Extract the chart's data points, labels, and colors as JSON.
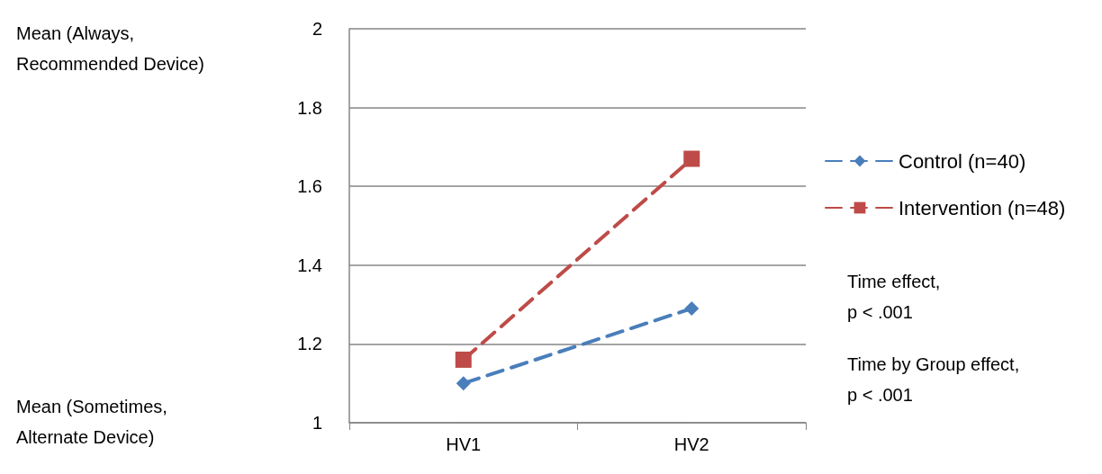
{
  "chart_data": {
    "type": "line",
    "categories": [
      "HV1",
      "HV2"
    ],
    "series": [
      {
        "name": "Control (n=40)",
        "color": "#4a7ebb",
        "values": [
          1.1,
          1.29
        ],
        "marker": "diamond"
      },
      {
        "name": "Intervention (n=48)",
        "color": "#be4b48",
        "values": [
          1.16,
          1.67
        ],
        "marker": "square"
      }
    ],
    "ylim": [
      1,
      2
    ],
    "yticks": [
      1,
      1.2,
      1.4,
      1.6,
      1.8,
      2
    ],
    "grid": "y",
    "legend": "right",
    "line_style": "dashed",
    "annotations": [
      "Mean (Always,\nRecommended Device)",
      "Mean (Sometimes,\nAlternate Device)",
      "Time effect,\np < .001",
      "Time by Group effect,\np < .001"
    ]
  }
}
